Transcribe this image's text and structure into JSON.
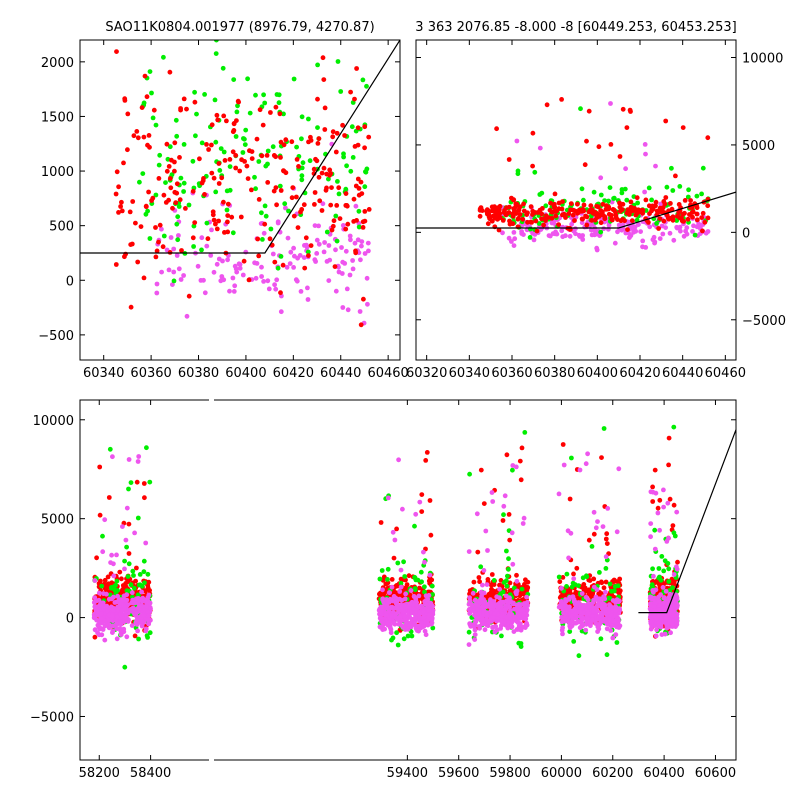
{
  "colors": {
    "red": "#ff0000",
    "green": "#00ee00",
    "magenta": "#ee55ee",
    "line": "#000000"
  },
  "chart_data": [
    {
      "id": "top-left",
      "type": "scatter",
      "title": "SAO11K0804.001977 (8976.79, 4270.87)",
      "xlim": [
        60330,
        60465
      ],
      "ylim": [
        -730,
        2200
      ],
      "xticks": [
        60340,
        60360,
        60380,
        60400,
        60420,
        60440,
        60460
      ],
      "yticks": [
        -500,
        0,
        500,
        1000,
        1500,
        2000
      ],
      "yaxis_side": "left",
      "grid": false,
      "series": [
        {
          "color": "magenta",
          "x_range": [
            60360,
            60452
          ],
          "y_center": 200,
          "y_spread": 420,
          "count": 160,
          "seed": 11
        },
        {
          "color": "green",
          "x_range": [
            60355,
            60452
          ],
          "y_center": 1100,
          "y_spread": 900,
          "count": 170,
          "seed": 12
        },
        {
          "color": "red",
          "x_range": [
            60345,
            60452
          ],
          "y_center": 900,
          "y_spread": 900,
          "count": 260,
          "seed": 13
        }
      ],
      "model_line": {
        "x": [
          60330,
          60408,
          60465
        ],
        "y": [
          250,
          250,
          2200
        ]
      }
    },
    {
      "id": "top-right",
      "type": "scatter",
      "title": "3 363 2076.85 -8.000 -8 [60449.253, 60453.253]",
      "xlim": [
        60315,
        60465
      ],
      "ylim": [
        -7300,
        11000
      ],
      "xticks": [
        60320,
        60340,
        60360,
        60380,
        60400,
        60420,
        60440,
        60460
      ],
      "yticks": [
        -5000,
        0,
        5000,
        10000
      ],
      "yaxis_side": "right",
      "grid": false,
      "series": [
        {
          "color": "magenta",
          "x_range": [
            60355,
            60452
          ],
          "y_center": 300,
          "y_spread": 900,
          "count": 200,
          "seed": 21
        },
        {
          "color": "green",
          "x_range": [
            60355,
            60452
          ],
          "y_center": 1200,
          "y_spread": 1000,
          "count": 140,
          "seed": 22
        },
        {
          "color": "red",
          "x_range": [
            60345,
            60452
          ],
          "y_center": 1100,
          "y_spread": 700,
          "count": 320,
          "seed": 23
        }
      ],
      "model_line": {
        "x": [
          60315,
          60410,
          60465
        ],
        "y": [
          250,
          250,
          2300
        ]
      }
    },
    {
      "id": "bottom",
      "type": "scatter",
      "title": "",
      "xlim": [
        58125,
        60680
      ],
      "ylim": [
        -7200,
        11000
      ],
      "xticks": [
        58200,
        58400,
        59400,
        59600,
        59800,
        60000,
        60200,
        60400,
        60600
      ],
      "yticks": [
        -5000,
        0,
        5000,
        10000
      ],
      "yaxis_side": "left",
      "grid": false,
      "seasons": [
        {
          "x_range": [
            58180,
            58400
          ]
        },
        {
          "x_range": [
            59290,
            59500
          ]
        },
        {
          "x_range": [
            59640,
            59870
          ]
        },
        {
          "x_range": [
            59990,
            60230
          ]
        },
        {
          "x_range": [
            60345,
            60452
          ]
        }
      ],
      "series": [
        {
          "color": "red",
          "y_center": 900,
          "y_spread": 1100,
          "per_season": 260,
          "seed": 31
        },
        {
          "color": "green",
          "y_center": 700,
          "y_spread": 2200,
          "per_season": 70,
          "seed": 32
        },
        {
          "color": "magenta",
          "y_center": 250,
          "y_spread": 900,
          "per_season": 320,
          "seed": 33
        }
      ],
      "model_line": {
        "x": [
          60300,
          60410,
          60680
        ],
        "y": [
          250,
          250,
          9500
        ]
      }
    }
  ]
}
